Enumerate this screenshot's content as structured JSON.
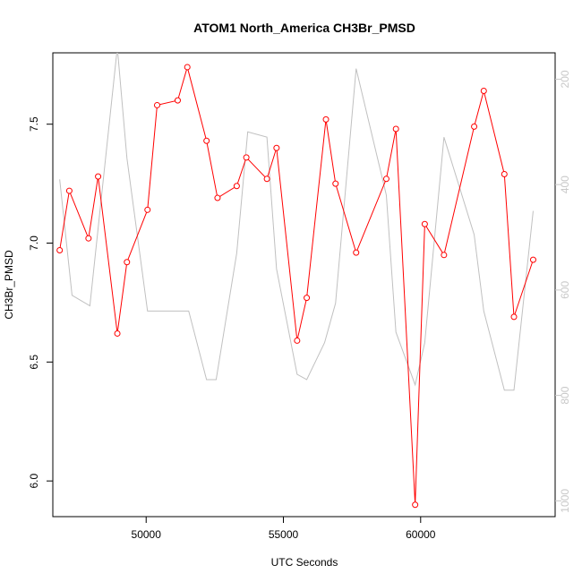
{
  "chart_data": {
    "type": "line",
    "title": "ATOM1 North_America CH3Br_PMSD",
    "xlabel": "UTC Seconds",
    "ylabel": "CH3Br_PMSD",
    "xlim": [
      46600,
      64900
    ],
    "ylim": [
      5.85,
      7.8
    ],
    "y2lim": [
      1030,
      150
    ],
    "x_ticks": [
      50000,
      55000,
      60000
    ],
    "x_tick_labels": [
      "50000",
      "55000",
      "60000"
    ],
    "y_ticks": [
      6.0,
      6.5,
      7.0,
      7.5
    ],
    "y_tick_labels": [
      "6.0",
      "6.5",
      "7.0",
      "7.5"
    ],
    "y2_ticks": [
      200,
      400,
      600,
      800,
      1000
    ],
    "y2_tick_labels": [
      "200",
      "400",
      "600",
      "800",
      "1000"
    ],
    "grid": false,
    "series": [
      {
        "axis": "left",
        "color": "#ff0000",
        "style": "line-with-open-circles",
        "x": [
          46850,
          47200,
          47900,
          48250,
          48950,
          49300,
          50050,
          50400,
          51150,
          51500,
          52200,
          52600,
          53300,
          53650,
          54400,
          54750,
          55500,
          55850,
          56550,
          56900,
          57650,
          58750,
          59100,
          59800,
          60150,
          60850,
          61950,
          62300,
          63050,
          63400,
          64100
        ],
        "y": [
          6.97,
          7.22,
          7.02,
          7.28,
          6.62,
          6.92,
          7.14,
          7.58,
          7.6,
          7.74,
          7.43,
          7.19,
          7.24,
          7.36,
          7.27,
          7.4,
          6.59,
          6.77,
          7.52,
          7.25,
          6.96,
          7.27,
          7.48,
          5.9,
          7.08,
          6.95,
          7.49,
          7.64,
          7.29,
          6.69,
          6.93
        ]
      },
      {
        "axis": "right",
        "color": "#c0c0c0",
        "style": "line",
        "x": [
          46850,
          47300,
          47950,
          48950,
          49300,
          50050,
          51550,
          52200,
          52550,
          53300,
          53700,
          54400,
          54750,
          55500,
          55850,
          56500,
          56900,
          57650,
          58750,
          59100,
          59800,
          60150,
          60850,
          61950,
          62300,
          63050,
          63400,
          64100
        ],
        "y": [
          390,
          610,
          630,
          140,
          350,
          640,
          640,
          770,
          770,
          530,
          300,
          310,
          560,
          760,
          770,
          700,
          625,
          180,
          420,
          680,
          780,
          700,
          310,
          495,
          640,
          790,
          790,
          450
        ]
      }
    ]
  }
}
